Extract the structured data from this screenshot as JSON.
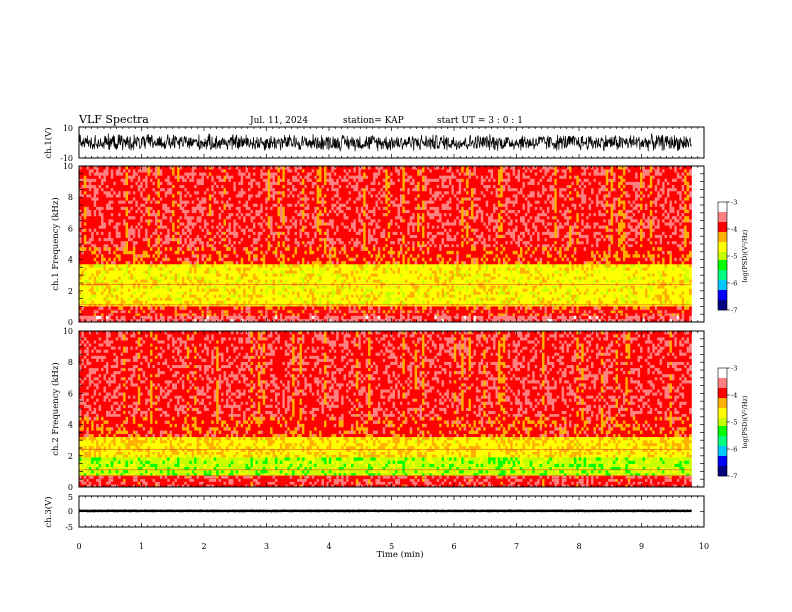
{
  "header": {
    "title": "VLF Spectra",
    "date": "Jul. 11, 2024",
    "station": "station= KAP",
    "start_ut": "start UT = 3 : 0 : 1"
  },
  "colorbar": {
    "label": "log(PSD)(V²/Hz)",
    "ticks": [
      "-3",
      "-4",
      "-5",
      "-6",
      "-7"
    ],
    "colors": [
      "#000080",
      "#0000ff",
      "#00c8ff",
      "#00ff80",
      "#00ff00",
      "#c8ff00",
      "#ffff00",
      "#ffb000",
      "#ff0000",
      "#ff8080",
      "#ffffff"
    ]
  },
  "chart_data": [
    {
      "type": "line",
      "id": "ch1-waveform",
      "ylabel": "ch.1(V)",
      "ylim": [
        -10,
        10
      ],
      "y_ticks": [
        "10",
        "-10"
      ],
      "xlim": [
        0,
        10
      ],
      "series": [
        {
          "approx_range": [
            -6,
            6
          ],
          "color": "#000000"
        }
      ]
    },
    {
      "type": "heatmap",
      "id": "ch1-spectrogram",
      "ylabel": "ch.1 Frequency (kHz)",
      "ylim": [
        0,
        10
      ],
      "y_ticks": [
        "0",
        "2",
        "4",
        "6",
        "8",
        "10"
      ],
      "xlim": [
        0,
        10
      ],
      "data_extent_min": 9.8,
      "zlim": [
        -7,
        -3
      ],
      "bands": [
        {
          "f_low": 4.8,
          "f_high": 10.0,
          "level": -3.8
        },
        {
          "f_low": 3.7,
          "f_high": 4.8,
          "level": -3.95
        },
        {
          "f_low": 1.0,
          "f_high": 3.7,
          "level": -4.6
        },
        {
          "f_low": 0.4,
          "f_high": 1.0,
          "level": -3.9
        },
        {
          "f_low": 0.0,
          "f_high": 0.4,
          "level": -3.6
        }
      ]
    },
    {
      "type": "heatmap",
      "id": "ch2-spectrogram",
      "ylabel": "ch.2 Frequency (kHz)",
      "ylim": [
        0,
        10
      ],
      "y_ticks": [
        "0",
        "2",
        "4",
        "6",
        "8",
        "10"
      ],
      "xlim": [
        0,
        10
      ],
      "data_extent_min": 9.8,
      "zlim": [
        -7,
        -3
      ],
      "bands": [
        {
          "f_low": 4.5,
          "f_high": 10.0,
          "level": -3.8
        },
        {
          "f_low": 3.2,
          "f_high": 4.5,
          "level": -3.95
        },
        {
          "f_low": 1.9,
          "f_high": 3.2,
          "level": -4.5
        },
        {
          "f_low": 0.7,
          "f_high": 1.9,
          "level": -5.0
        },
        {
          "f_low": 0.0,
          "f_high": 0.7,
          "level": -3.8
        }
      ]
    },
    {
      "type": "line",
      "id": "ch3-waveform",
      "ylabel": "ch.3(V)",
      "ylim": [
        -5,
        5
      ],
      "y_ticks": [
        "5",
        "0",
        "-5"
      ],
      "xlim": [
        0,
        10
      ],
      "series": [
        {
          "approx_center": 0.2,
          "approx_halfwidth": 0.45,
          "color": "#000000"
        }
      ]
    }
  ],
  "x_axis": {
    "label": "Time (min)",
    "ticks": [
      "0",
      "1",
      "2",
      "3",
      "4",
      "5",
      "6",
      "7",
      "8",
      "9",
      "10"
    ]
  }
}
